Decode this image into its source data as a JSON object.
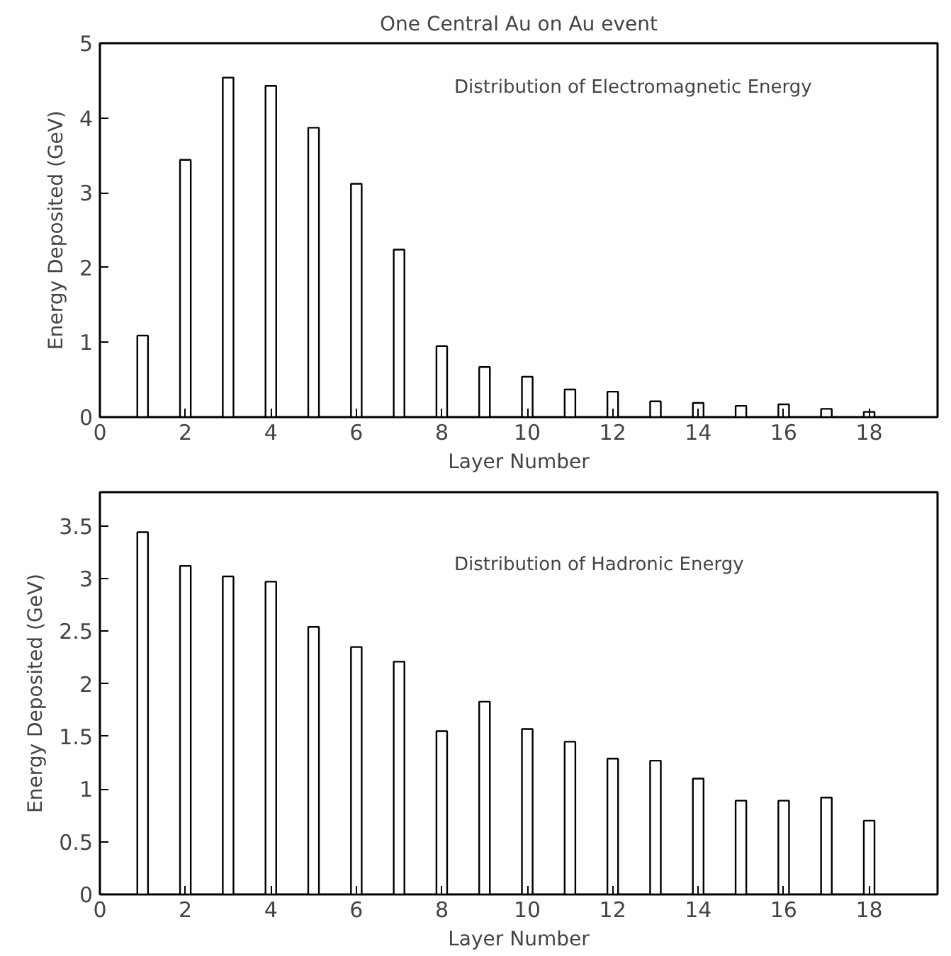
{
  "chart_data": [
    {
      "type": "bar",
      "title": "One Central Au on Au event",
      "xlabel": "Layer Number",
      "ylabel": "Energy Deposited (GeV)",
      "annotations": [
        "Distribution of Electromagnetic Energy"
      ],
      "x": [
        1,
        2,
        3,
        4,
        5,
        6,
        7,
        8,
        9,
        10,
        11,
        12,
        13,
        14,
        15,
        16,
        17,
        18
      ],
      "values": [
        1.09,
        3.44,
        4.54,
        4.43,
        3.87,
        3.12,
        2.24,
        0.95,
        0.67,
        0.54,
        0.37,
        0.34,
        0.21,
        0.19,
        0.15,
        0.17,
        0.11,
        0.07
      ],
      "color": "#ffffff",
      "xlim": [
        0,
        19.6
      ],
      "xticks": [
        0,
        2,
        4,
        6,
        8,
        10,
        12,
        14,
        16,
        18
      ],
      "ylim": [
        0,
        5
      ],
      "yticks": [
        0,
        1,
        2,
        3,
        4,
        5
      ],
      "grid": false
    },
    {
      "type": "bar",
      "xlabel": "Layer Number",
      "ylabel": "Energy Deposited (GeV)",
      "annotations": [
        "Distribution of Hadronic Energy"
      ],
      "x": [
        1,
        2,
        3,
        4,
        5,
        6,
        7,
        8,
        9,
        10,
        11,
        12,
        13,
        14,
        15,
        16,
        17,
        18
      ],
      "values": [
        3.44,
        3.12,
        3.02,
        2.97,
        2.54,
        2.35,
        2.21,
        1.55,
        1.83,
        1.57,
        1.45,
        1.29,
        1.27,
        1.1,
        0.89,
        0.89,
        0.92,
        0.7
      ],
      "color": "#ffffff",
      "xlim": [
        0,
        19.6
      ],
      "xticks": [
        0,
        2,
        4,
        6,
        8,
        10,
        12,
        14,
        16,
        18
      ],
      "ylim": [
        0,
        3.82
      ],
      "yticks": [
        0,
        0.5,
        1,
        1.5,
        2,
        2.5,
        3,
        3.5
      ],
      "grid": false
    }
  ]
}
